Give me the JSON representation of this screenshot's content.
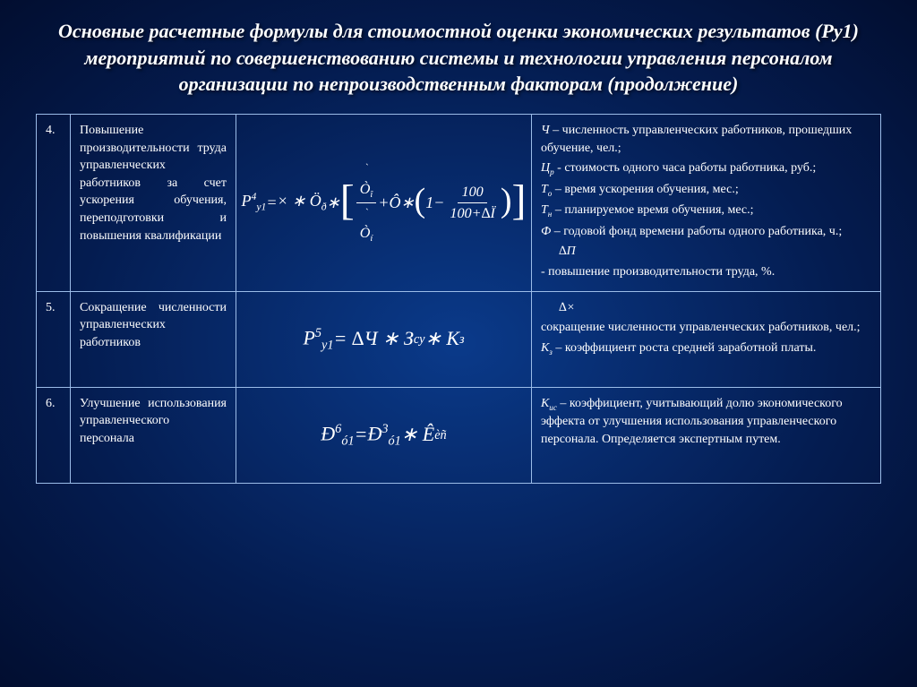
{
  "title": "Основные расчетные формулы для стоимостной оценки экономических результатов (Ру1) мероприятий по совершенствованию системы и технологии управления персоналом организации по непроизводственным факторам (продолжение)",
  "rows": [
    {
      "num": "4.",
      "desc": "Повышение производительности труда управленческих работников за счет ускорения обучения, переподготовки и повышения квалификации",
      "formula": {
        "lhs_base": "P",
        "lhs_sup": "4",
        "lhs_sub": "y1",
        "t1": "× ∗ Ö",
        "t1_sub": "ð",
        "f1_num_base": "Ò",
        "f1_num_sub": "î",
        "f1_num_dot": "`",
        "f1_den_base": "Ò",
        "f1_den_sub": "í",
        "f1_den_dot": "`",
        "t2": "+Ô∗",
        "f2_num": "100",
        "f2_den_a": "100",
        "f2_den_b": "+∆Ï"
      },
      "legend": [
        {
          "sym": "Ч",
          "txt": " – численность управленческих работников, прошедших обучение, чел.;"
        },
        {
          "sym": "Ц",
          "sub": "р",
          "txt": "  - стоимость одного часа работы работника, руб.;"
        },
        {
          "sym": "Т",
          "sub": "о",
          "txt": " – время ускорения обучения, мес.;"
        },
        {
          "sym": "Т",
          "sub": "н",
          "txt": " – планируемое время обучения, мес.;"
        },
        {
          "sym": "Ф",
          "txt": " – годовой фонд времени работы одного работника, ч.;"
        },
        {
          "sym": "∆П",
          "indent": true,
          "txt": ""
        },
        {
          "sym": "",
          "txt": "- повышение производительности труда, %."
        }
      ]
    },
    {
      "num": "5.",
      "desc": "Сокращение численности управленческих работников",
      "formula": {
        "lhs_base": "P",
        "lhs_sup": "5",
        "lhs_sub": "y1",
        "rhs": " = ∆Ч ∗ З",
        "rhs_sub1": "су",
        "rhs2": " ∗ К",
        "rhs_sub2": "з"
      },
      "legend": [
        {
          "sym": "∆×",
          "indent": true,
          "txt": ""
        },
        {
          "sym": "",
          "txt": "сокращение численности управленческих работников, чел.;"
        },
        {
          "sym": "К",
          "sub": "з",
          "txt": " – коэффициент роста средней заработной платы."
        }
      ]
    },
    {
      "num": "6.",
      "desc": "Улучшение использования управленческого персонала",
      "formula": {
        "lhs_base": "Ð",
        "lhs_sup": "6",
        "lhs_sub": "ó1",
        "eq": " = ",
        "rhs_base": "Ð",
        "rhs_sup": "3",
        "rhs_sub": "ó1",
        "rhs2": " ∗ Ê",
        "rhs2_hat": "ˆ",
        "rhs2_sub": "èñ"
      },
      "legend": [
        {
          "sym": "К",
          "sub": "ис",
          "txt": " – коэффициент, учитывающий долю экономического эффекта от улучшения использования управленческого персонала. Определяется экспертным путем."
        }
      ]
    }
  ]
}
